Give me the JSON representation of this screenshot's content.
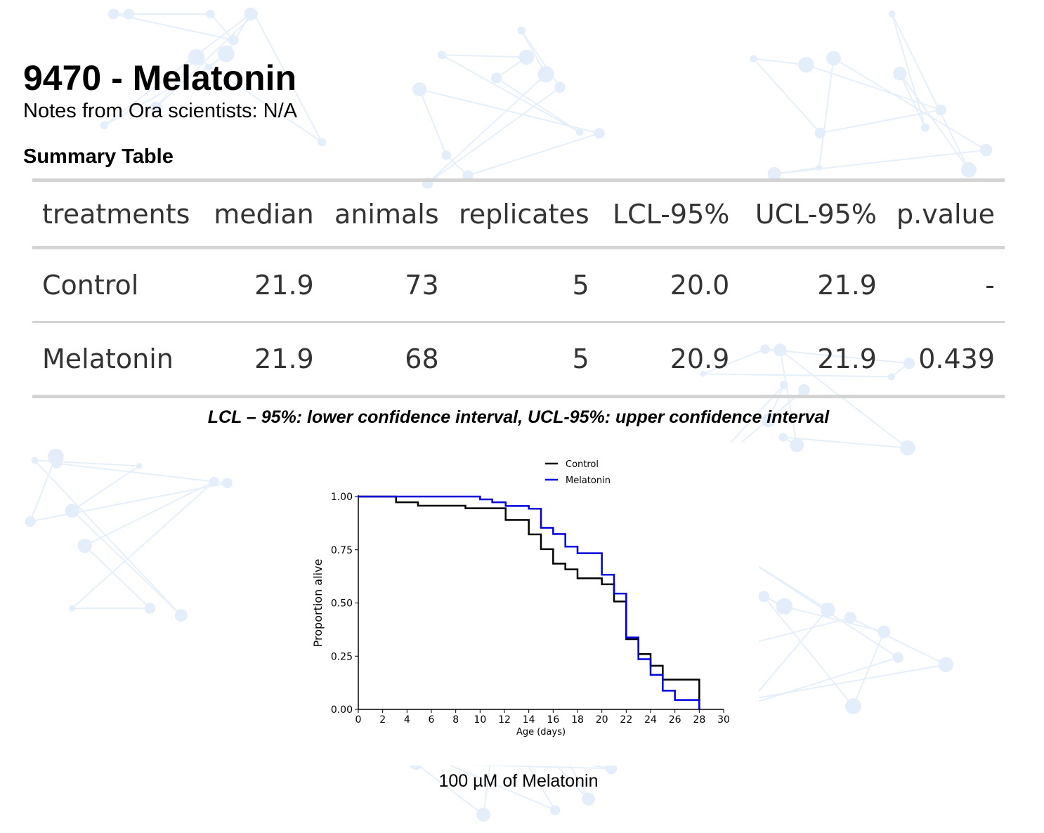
{
  "header": {
    "title": "9470 - Melatonin",
    "notes": "Notes from Ora scientists: N/A",
    "summary_title": "Summary Table"
  },
  "table": {
    "columns": [
      "treatments",
      "median",
      "animals",
      "replicates",
      "LCL-95%",
      "UCL-95%",
      "p.value"
    ],
    "rows": [
      [
        "Control",
        "21.9",
        "73",
        "5",
        "20.0",
        "21.9",
        "-"
      ],
      [
        "Melatonin",
        "21.9",
        "68",
        "5",
        "20.9",
        "21.9",
        "0.439"
      ]
    ]
  },
  "caption": "LCL – 95%: lower confidence interval, UCL-95%: upper confidence interval",
  "footer": "100 µM of Melatonin",
  "chart_data": {
    "type": "line",
    "step": true,
    "xlabel": "Age (days)",
    "ylabel": "Proportion alive",
    "xlim": [
      0,
      30
    ],
    "ylim": [
      0,
      1
    ],
    "xticks": [
      "0",
      "2",
      "4",
      "6",
      "8",
      "10",
      "12",
      "14",
      "16",
      "18",
      "20",
      "22",
      "24",
      "26",
      "28",
      "30"
    ],
    "yticks": [
      "0.00",
      "0.25",
      "0.50",
      "0.75",
      "1.00"
    ],
    "grid": false,
    "legend": "top-center",
    "series": [
      {
        "name": "Control",
        "color": "#000000",
        "x": [
          0,
          3.1,
          4.9,
          8.8,
          12.1,
          14,
          15,
          16,
          17,
          18,
          20,
          21,
          22,
          23,
          24,
          25,
          28
        ],
        "y": [
          1.0,
          0.973,
          0.957,
          0.945,
          0.89,
          0.822,
          0.753,
          0.685,
          0.658,
          0.616,
          0.588,
          0.507,
          0.33,
          0.26,
          0.205,
          0.14,
          0.0
        ]
      },
      {
        "name": "Melatonin",
        "color": "#0000dd",
        "x": [
          0,
          10,
          11,
          12.1,
          14,
          15,
          16,
          17,
          18,
          20,
          21,
          22,
          23,
          24,
          25,
          26,
          28
        ],
        "y": [
          1.0,
          0.987,
          0.973,
          0.956,
          0.943,
          0.853,
          0.824,
          0.765,
          0.734,
          0.633,
          0.544,
          0.338,
          0.236,
          0.162,
          0.088,
          0.044,
          0.0
        ]
      }
    ]
  }
}
